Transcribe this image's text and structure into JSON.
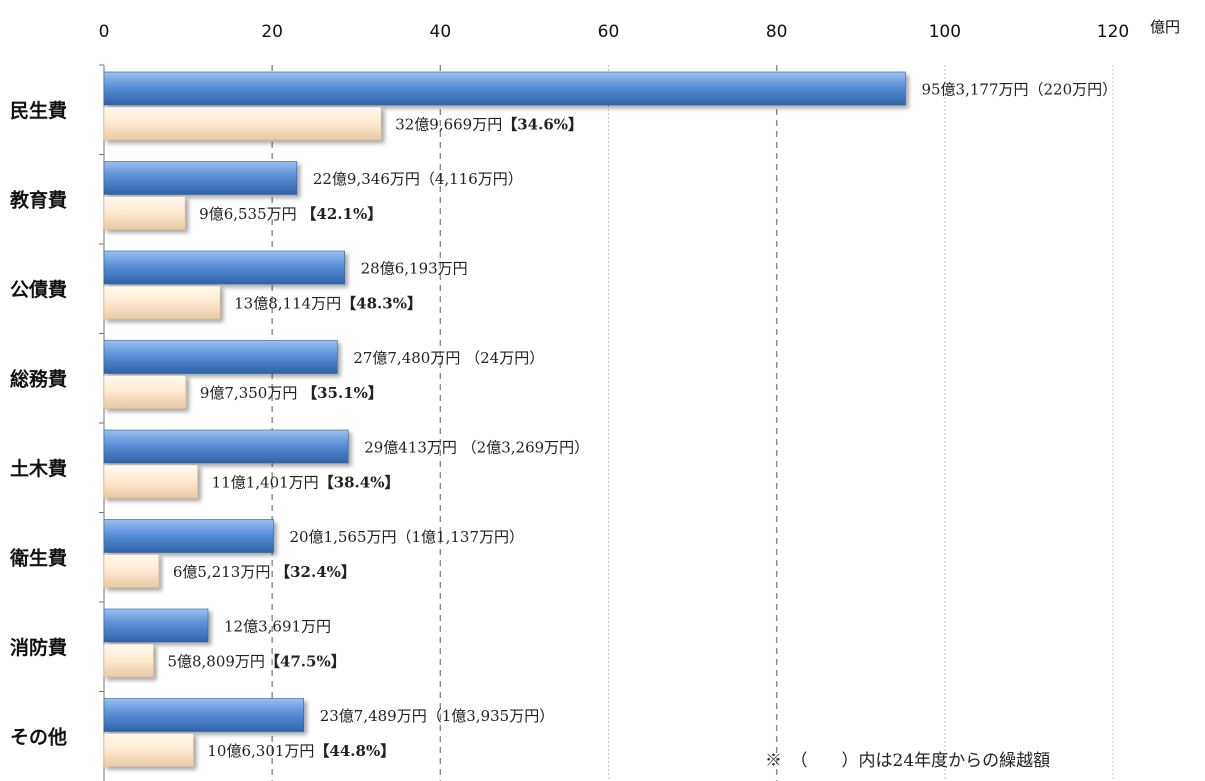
{
  "chart_data": {
    "type": "bar",
    "orientation": "horizontal",
    "unit": "億円",
    "xlim": [
      0,
      120
    ],
    "x_ticks": [
      0,
      20,
      40,
      60,
      80,
      100,
      120
    ],
    "categories": [
      "民生費",
      "教育費",
      "公債費",
      "総務費",
      "土木費",
      "衛生費",
      "消防費",
      "その他"
    ],
    "series": [
      {
        "values": [
          95.3177,
          22.9346,
          28.6193,
          27.748,
          29.0413,
          20.1565,
          12.3691,
          23.7489
        ],
        "color": "#4f86d0"
      },
      {
        "values": [
          32.9669,
          9.6535,
          13.8114,
          9.735,
          11.1401,
          6.5213,
          5.8809,
          10.6301
        ],
        "color": "#fde9cf"
      }
    ],
    "labels_series1": [
      "95億3,177万円（220万円）",
      "22億9,346万円（4,116万円）",
      "28億6,193万円",
      "27億7,480万円 （24万円）",
      "29億413万円 （2億3,269万円）",
      "20億1,565万円（1億1,137万円）",
      "12億3,691万円",
      "23億7,489万円（1億3,935万円）"
    ],
    "labels_series2_value": [
      "32億9,669万円",
      "9億6,535万円 ",
      "13億8,114万円",
      "9億7,350万円 ",
      "11億1,401万円",
      "6億5,213万円 ",
      "5億8,809万円",
      "10億6,301万円"
    ],
    "labels_series2_ratio": [
      "【34.6%】",
      "【42.1%】",
      "【48.3%】",
      "【35.1%】",
      "【38.4%】",
      "【32.4%】",
      "【47.5%】",
      "【44.8%】"
    ],
    "grid": true
  },
  "footnote": "※　（　　）内は24年度からの繰越額"
}
